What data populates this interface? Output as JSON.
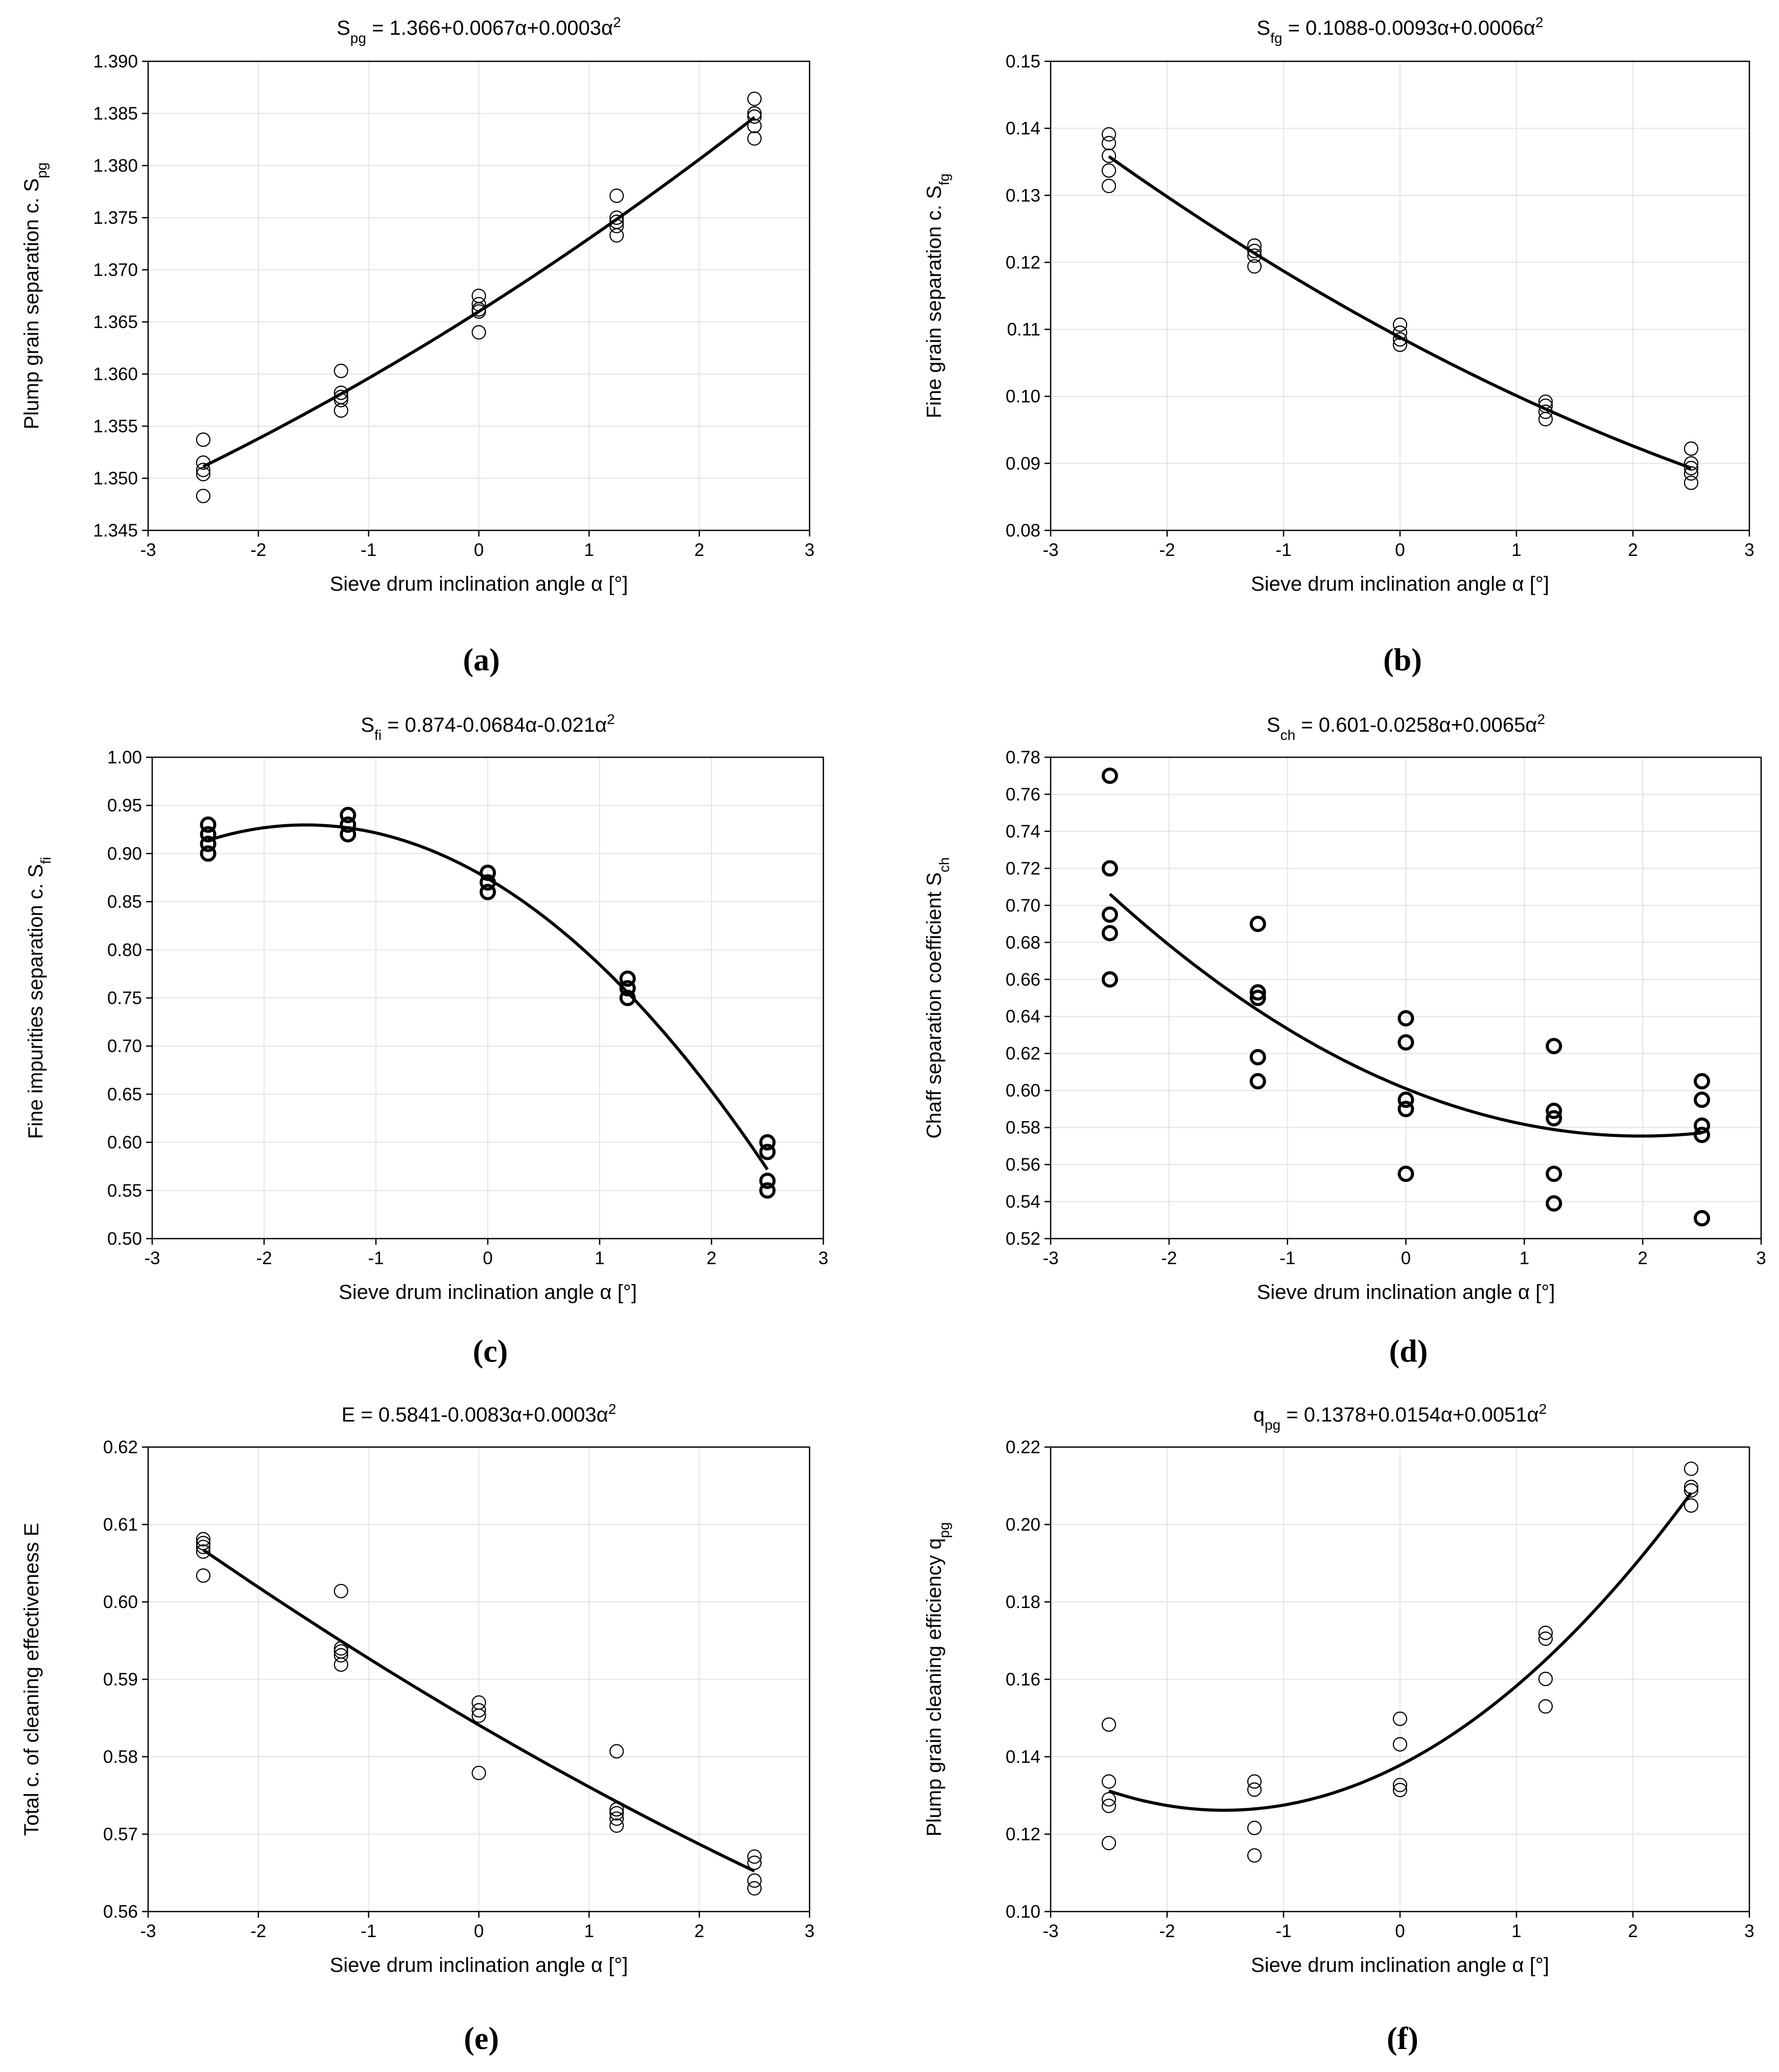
{
  "chart_data": [
    {
      "type": "scatter",
      "panel": "(a)",
      "title": {
        "main": "S",
        "sub": "pg",
        "rest": " = 1.366+0.0067α+0.0003α",
        "sup": "2"
      },
      "xlabel": "Sieve drum inclination angle  α [°]",
      "ylabel": {
        "main": "Plump grain separation c. S",
        "sub": "pg"
      },
      "xlim": [
        -3,
        3
      ],
      "ylim": [
        1.345,
        1.39
      ],
      "xticks": [
        -3,
        -2,
        -1,
        0,
        1,
        2,
        3
      ],
      "yticks": [
        1.345,
        1.35,
        1.355,
        1.36,
        1.365,
        1.37,
        1.375,
        1.38,
        1.385,
        1.39
      ],
      "ytick_decimals": 3,
      "marker": "thin",
      "fit": {
        "c0": 1.366,
        "c1": 0.0067,
        "c2": 0.0003,
        "x_range": [
          -2.5,
          2.5
        ]
      },
      "points": [
        {
          "x": -2.5,
          "y": 1.3537
        },
        {
          "x": -2.5,
          "y": 1.3515
        },
        {
          "x": -2.5,
          "y": 1.3508
        },
        {
          "x": -2.5,
          "y": 1.3504
        },
        {
          "x": -2.5,
          "y": 1.3483
        },
        {
          "x": -1.25,
          "y": 1.3603
        },
        {
          "x": -1.25,
          "y": 1.3582
        },
        {
          "x": -1.25,
          "y": 1.3578
        },
        {
          "x": -1.25,
          "y": 1.3575
        },
        {
          "x": -1.25,
          "y": 1.3565
        },
        {
          "x": 0,
          "y": 1.3675
        },
        {
          "x": 0,
          "y": 1.3667
        },
        {
          "x": 0,
          "y": 1.3662
        },
        {
          "x": 0,
          "y": 1.366
        },
        {
          "x": 0,
          "y": 1.364
        },
        {
          "x": 1.25,
          "y": 1.3771
        },
        {
          "x": 1.25,
          "y": 1.375
        },
        {
          "x": 1.25,
          "y": 1.3746
        },
        {
          "x": 1.25,
          "y": 1.3742
        },
        {
          "x": 1.25,
          "y": 1.3733
        },
        {
          "x": 2.5,
          "y": 1.3864
        },
        {
          "x": 2.5,
          "y": 1.385
        },
        {
          "x": 2.5,
          "y": 1.3847
        },
        {
          "x": 2.5,
          "y": 1.3838
        },
        {
          "x": 2.5,
          "y": 1.3826
        }
      ]
    },
    {
      "type": "scatter",
      "panel": "(b)",
      "title": {
        "main": "S",
        "sub": "fg",
        "rest": " = 0.1088-0.0093α+0.0006α",
        "sup": "2"
      },
      "xlabel": "Sieve drum inclination angle  α [°]",
      "ylabel": {
        "main": "Fine grain separation c. S",
        "sub": "fg"
      },
      "xlim": [
        -3,
        3
      ],
      "ylim": [
        0.08,
        0.15
      ],
      "xticks": [
        -3,
        -2,
        -1,
        0,
        1,
        2,
        3
      ],
      "yticks": [
        0.08,
        0.09,
        0.1,
        0.11,
        0.12,
        0.13,
        0.14,
        0.15
      ],
      "ytick_decimals": 2,
      "marker": "thin",
      "fit": {
        "c0": 0.1088,
        "c1": -0.0093,
        "c2": 0.0006,
        "x_range": [
          -2.5,
          2.5
        ]
      },
      "points": [
        {
          "x": -2.5,
          "y": 0.1391
        },
        {
          "x": -2.5,
          "y": 0.1378
        },
        {
          "x": -2.5,
          "y": 0.1359
        },
        {
          "x": -2.5,
          "y": 0.1337
        },
        {
          "x": -2.5,
          "y": 0.1314
        },
        {
          "x": -1.25,
          "y": 0.1225
        },
        {
          "x": -1.25,
          "y": 0.1217
        },
        {
          "x": -1.25,
          "y": 0.121
        },
        {
          "x": -1.25,
          "y": 0.1194
        },
        {
          "x": 0,
          "y": 0.1107
        },
        {
          "x": 0,
          "y": 0.1095
        },
        {
          "x": 0,
          "y": 0.1085
        },
        {
          "x": 0,
          "y": 0.1077
        },
        {
          "x": 1.25,
          "y": 0.0992
        },
        {
          "x": 1.25,
          "y": 0.0986
        },
        {
          "x": 1.25,
          "y": 0.0977
        },
        {
          "x": 1.25,
          "y": 0.0966
        },
        {
          "x": 2.5,
          "y": 0.0922
        },
        {
          "x": 2.5,
          "y": 0.09
        },
        {
          "x": 2.5,
          "y": 0.0893
        },
        {
          "x": 2.5,
          "y": 0.0885
        },
        {
          "x": 2.5,
          "y": 0.0871
        }
      ]
    },
    {
      "type": "scatter",
      "panel": "(c)",
      "title": {
        "main": "S",
        "sub": "fi",
        "rest": " = 0.874-0.0684α-0.021α",
        "sup": "2"
      },
      "xlabel": "Sieve drum inclination angle  α [°]",
      "ylabel": {
        "main": "Fine impurities separation c. S",
        "sub": "fi"
      },
      "xlim": [
        -3,
        3
      ],
      "ylim": [
        0.5,
        1.0
      ],
      "xticks": [
        -3,
        -2,
        -1,
        0,
        1,
        2,
        3
      ],
      "yticks": [
        0.5,
        0.55,
        0.6,
        0.65,
        0.7,
        0.75,
        0.8,
        0.85,
        0.9,
        0.95,
        1.0
      ],
      "ytick_decimals": 2,
      "marker": "bold",
      "fit": {
        "c0": 0.874,
        "c1": -0.0684,
        "c2": -0.021,
        "x_range": [
          -2.5,
          2.5
        ]
      },
      "points": [
        {
          "x": -2.5,
          "y": 0.93
        },
        {
          "x": -2.5,
          "y": 0.92
        },
        {
          "x": -2.5,
          "y": 0.91
        },
        {
          "x": -2.5,
          "y": 0.9
        },
        {
          "x": -1.25,
          "y": 0.94
        },
        {
          "x": -1.25,
          "y": 0.93
        },
        {
          "x": -1.25,
          "y": 0.92
        },
        {
          "x": 0,
          "y": 0.88
        },
        {
          "x": 0,
          "y": 0.87
        },
        {
          "x": 0,
          "y": 0.86
        },
        {
          "x": 1.25,
          "y": 0.77
        },
        {
          "x": 1.25,
          "y": 0.76
        },
        {
          "x": 1.25,
          "y": 0.75
        },
        {
          "x": 2.5,
          "y": 0.6
        },
        {
          "x": 2.5,
          "y": 0.59
        },
        {
          "x": 2.5,
          "y": 0.56
        },
        {
          "x": 2.5,
          "y": 0.55
        }
      ]
    },
    {
      "type": "scatter",
      "panel": "(d)",
      "title": {
        "main": "S",
        "sub": "ch",
        "rest": " = 0.601-0.0258α+0.0065α",
        "sup": "2"
      },
      "xlabel": "Sieve drum inclination angle  α [°]",
      "ylabel": {
        "main": "Chaff separation coefficient S",
        "sub": "ch"
      },
      "xlim": [
        -3,
        3
      ],
      "ylim": [
        0.52,
        0.78
      ],
      "xticks": [
        -3,
        -2,
        -1,
        0,
        1,
        2,
        3
      ],
      "yticks": [
        0.52,
        0.54,
        0.56,
        0.58,
        0.6,
        0.62,
        0.64,
        0.66,
        0.68,
        0.7,
        0.72,
        0.74,
        0.76,
        0.78
      ],
      "ytick_decimals": 2,
      "marker": "bold",
      "fit": {
        "c0": 0.601,
        "c1": -0.0258,
        "c2": 0.0065,
        "x_range": [
          -2.5,
          2.5
        ]
      },
      "points": [
        {
          "x": -2.5,
          "y": 0.77
        },
        {
          "x": -2.5,
          "y": 0.72
        },
        {
          "x": -2.5,
          "y": 0.695
        },
        {
          "x": -2.5,
          "y": 0.685
        },
        {
          "x": -2.5,
          "y": 0.66
        },
        {
          "x": -1.25,
          "y": 0.69
        },
        {
          "x": -1.25,
          "y": 0.653
        },
        {
          "x": -1.25,
          "y": 0.65
        },
        {
          "x": -1.25,
          "y": 0.618
        },
        {
          "x": -1.25,
          "y": 0.605
        },
        {
          "x": 0,
          "y": 0.639
        },
        {
          "x": 0,
          "y": 0.626
        },
        {
          "x": 0,
          "y": 0.595
        },
        {
          "x": 0,
          "y": 0.59
        },
        {
          "x": 0,
          "y": 0.555
        },
        {
          "x": 1.25,
          "y": 0.624
        },
        {
          "x": 1.25,
          "y": 0.589
        },
        {
          "x": 1.25,
          "y": 0.585
        },
        {
          "x": 1.25,
          "y": 0.555
        },
        {
          "x": 1.25,
          "y": 0.539
        },
        {
          "x": 2.5,
          "y": 0.605
        },
        {
          "x": 2.5,
          "y": 0.595
        },
        {
          "x": 2.5,
          "y": 0.581
        },
        {
          "x": 2.5,
          "y": 0.576
        },
        {
          "x": 2.5,
          "y": 0.531
        }
      ]
    },
    {
      "type": "scatter",
      "panel": "(e)",
      "title": {
        "main": "E",
        "sub": "",
        "rest": " = 0.5841-0.0083α+0.0003α",
        "sup": "2"
      },
      "xlabel": "Sieve drum inclination angle  α [°]",
      "ylabel": {
        "main": "Total c. of cleaning effectiveness E",
        "sub": ""
      },
      "xlim": [
        -3,
        3
      ],
      "ylim": [
        0.56,
        0.62
      ],
      "xticks": [
        -3,
        -2,
        -1,
        0,
        1,
        2,
        3
      ],
      "yticks": [
        0.56,
        0.57,
        0.58,
        0.59,
        0.6,
        0.61,
        0.62
      ],
      "ytick_decimals": 2,
      "marker": "thin",
      "fit": {
        "c0": 0.5841,
        "c1": -0.0083,
        "c2": 0.0003,
        "x_range": [
          -2.5,
          2.5
        ]
      },
      "points": [
        {
          "x": -2.5,
          "y": 0.6081
        },
        {
          "x": -2.5,
          "y": 0.6076
        },
        {
          "x": -2.5,
          "y": 0.6071
        },
        {
          "x": -2.5,
          "y": 0.6065
        },
        {
          "x": -2.5,
          "y": 0.6034
        },
        {
          "x": -1.25,
          "y": 0.6014
        },
        {
          "x": -1.25,
          "y": 0.594
        },
        {
          "x": -1.25,
          "y": 0.5936
        },
        {
          "x": -1.25,
          "y": 0.5931
        },
        {
          "x": -1.25,
          "y": 0.5919
        },
        {
          "x": 0,
          "y": 0.587
        },
        {
          "x": 0,
          "y": 0.586
        },
        {
          "x": 0,
          "y": 0.5853
        },
        {
          "x": 0,
          "y": 0.5779
        },
        {
          "x": 1.25,
          "y": 0.5807
        },
        {
          "x": 1.25,
          "y": 0.5732
        },
        {
          "x": 1.25,
          "y": 0.5727
        },
        {
          "x": 1.25,
          "y": 0.572
        },
        {
          "x": 1.25,
          "y": 0.5711
        },
        {
          "x": 2.5,
          "y": 0.5671
        },
        {
          "x": 2.5,
          "y": 0.5663
        },
        {
          "x": 2.5,
          "y": 0.564
        },
        {
          "x": 2.5,
          "y": 0.563
        }
      ]
    },
    {
      "type": "scatter",
      "panel": "(f)",
      "title": {
        "main": "q",
        "sub": "pg",
        "rest": " = 0.1378+0.0154α+0.0051α",
        "sup": "2"
      },
      "xlabel": "Sieve drum inclination angle  α [°]",
      "ylabel": {
        "main": "Plump grain cleaning efficiency q",
        "sub": "pg"
      },
      "xlim": [
        -3,
        3
      ],
      "ylim": [
        0.1,
        0.22
      ],
      "xticks": [
        -3,
        -2,
        -1,
        0,
        1,
        2,
        3
      ],
      "yticks": [
        0.1,
        0.12,
        0.14,
        0.16,
        0.18,
        0.2,
        0.22
      ],
      "ytick_decimals": 2,
      "marker": "thin",
      "fit": {
        "c0": 0.1378,
        "c1": 0.0154,
        "c2": 0.0051,
        "x_range": [
          -2.5,
          2.5
        ]
      },
      "points": [
        {
          "x": -2.5,
          "y": 0.1483
        },
        {
          "x": -2.5,
          "y": 0.1336
        },
        {
          "x": -2.5,
          "y": 0.129
        },
        {
          "x": -2.5,
          "y": 0.1273
        },
        {
          "x": -2.5,
          "y": 0.1177
        },
        {
          "x": -1.25,
          "y": 0.1336
        },
        {
          "x": -1.25,
          "y": 0.1315
        },
        {
          "x": -1.25,
          "y": 0.1216
        },
        {
          "x": -1.25,
          "y": 0.1145
        },
        {
          "x": 0,
          "y": 0.1498
        },
        {
          "x": 0,
          "y": 0.1432
        },
        {
          "x": 0,
          "y": 0.1327
        },
        {
          "x": 0,
          "y": 0.1314
        },
        {
          "x": 1.25,
          "y": 0.172
        },
        {
          "x": 1.25,
          "y": 0.1705
        },
        {
          "x": 1.25,
          "y": 0.1601
        },
        {
          "x": 1.25,
          "y": 0.153
        },
        {
          "x": 2.5,
          "y": 0.2144
        },
        {
          "x": 2.5,
          "y": 0.2097
        },
        {
          "x": 2.5,
          "y": 0.2088
        },
        {
          "x": 2.5,
          "y": 0.2049
        }
      ]
    }
  ]
}
